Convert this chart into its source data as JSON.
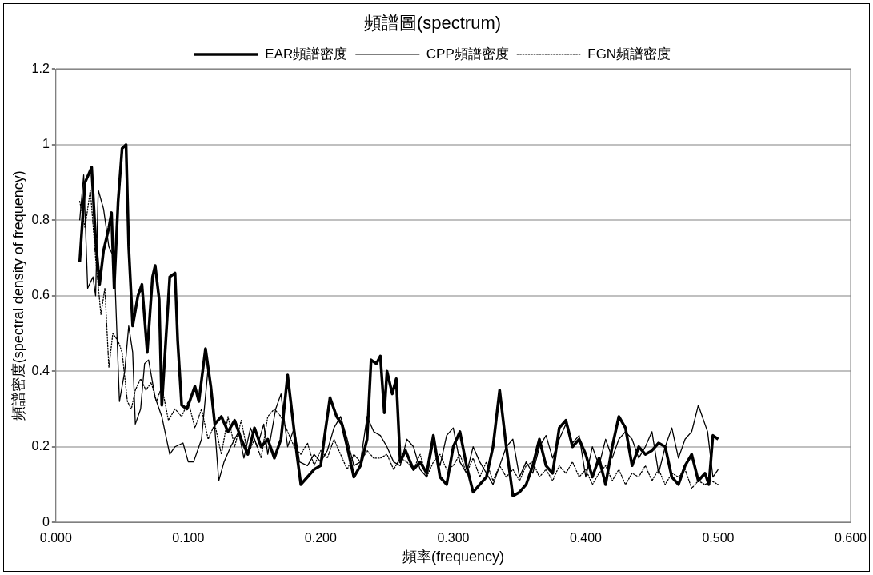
{
  "chart_data": {
    "type": "line",
    "title": "頻譜圖(spectrum)",
    "xlabel": "頻率(frequency)",
    "ylabel": "頻譜密度(spectral density of frequency)",
    "xlim": [
      0,
      0.6
    ],
    "xticks": [
      {
        "value": 0,
        "label": "0.000"
      },
      {
        "value": 0.1,
        "label": "0.100"
      },
      {
        "value": 0.2,
        "label": "0.200"
      },
      {
        "value": 0.3,
        "label": "0.300"
      },
      {
        "value": 0.4,
        "label": "0.400"
      },
      {
        "value": 0.5,
        "label": "0.500"
      },
      {
        "value": 0.6,
        "label": "0.600"
      }
    ],
    "ylim": [
      0,
      1.2
    ],
    "yticks": [
      0,
      0.2,
      0.4,
      0.6,
      0.8,
      1,
      1.2
    ],
    "grid": "y",
    "legend": "top",
    "marker": "none",
    "series": [
      {
        "name": "EAR頻譜密度",
        "color": "#000000",
        "line_style": "solid",
        "x": [
          0.018,
          0.022,
          0.027,
          0.03,
          0.033,
          0.036,
          0.04,
          0.042,
          0.044,
          0.047,
          0.05,
          0.053,
          0.055,
          0.058,
          0.062,
          0.065,
          0.069,
          0.073,
          0.075,
          0.078,
          0.08,
          0.083,
          0.086,
          0.09,
          0.092,
          0.095,
          0.099,
          0.105,
          0.108,
          0.113,
          0.117,
          0.12,
          0.125,
          0.13,
          0.135,
          0.14,
          0.145,
          0.15,
          0.155,
          0.16,
          0.165,
          0.17,
          0.175,
          0.178,
          0.182,
          0.185,
          0.19,
          0.195,
          0.2,
          0.203,
          0.207,
          0.212,
          0.216,
          0.22,
          0.225,
          0.23,
          0.235,
          0.238,
          0.242,
          0.245,
          0.248,
          0.25,
          0.254,
          0.257,
          0.26,
          0.264,
          0.27,
          0.275,
          0.28,
          0.285,
          0.29,
          0.295,
          0.3,
          0.305,
          0.31,
          0.315,
          0.32,
          0.325,
          0.33,
          0.335,
          0.34,
          0.345,
          0.35,
          0.355,
          0.36,
          0.365,
          0.37,
          0.375,
          0.38,
          0.385,
          0.39,
          0.395,
          0.4,
          0.405,
          0.41,
          0.415,
          0.42,
          0.425,
          0.43,
          0.435,
          0.44,
          0.445,
          0.45,
          0.455,
          0.46,
          0.465,
          0.47,
          0.475,
          0.48,
          0.485,
          0.49,
          0.493,
          0.496,
          0.5
        ],
        "values": [
          0.69,
          0.9,
          0.94,
          0.75,
          0.63,
          0.72,
          0.78,
          0.82,
          0.62,
          0.85,
          0.99,
          1.0,
          0.73,
          0.52,
          0.6,
          0.63,
          0.45,
          0.65,
          0.68,
          0.59,
          0.31,
          0.48,
          0.65,
          0.66,
          0.48,
          0.31,
          0.3,
          0.36,
          0.32,
          0.46,
          0.36,
          0.26,
          0.28,
          0.24,
          0.27,
          0.22,
          0.18,
          0.25,
          0.2,
          0.22,
          0.17,
          0.22,
          0.39,
          0.3,
          0.18,
          0.1,
          0.12,
          0.14,
          0.15,
          0.23,
          0.33,
          0.28,
          0.26,
          0.2,
          0.12,
          0.15,
          0.22,
          0.43,
          0.42,
          0.44,
          0.29,
          0.4,
          0.34,
          0.38,
          0.16,
          0.19,
          0.14,
          0.16,
          0.13,
          0.23,
          0.12,
          0.1,
          0.2,
          0.24,
          0.15,
          0.08,
          0.1,
          0.12,
          0.2,
          0.35,
          0.2,
          0.07,
          0.08,
          0.1,
          0.15,
          0.22,
          0.15,
          0.13,
          0.25,
          0.27,
          0.2,
          0.22,
          0.18,
          0.12,
          0.17,
          0.1,
          0.2,
          0.28,
          0.25,
          0.15,
          0.2,
          0.18,
          0.19,
          0.21,
          0.2,
          0.12,
          0.1,
          0.15,
          0.18,
          0.11,
          0.13,
          0.1,
          0.23,
          0.22
        ]
      },
      {
        "name": "CPP頻譜密度",
        "color": "#000000",
        "line_style": "solid",
        "x": [
          0.018,
          0.021,
          0.024,
          0.028,
          0.03,
          0.032,
          0.036,
          0.04,
          0.044,
          0.048,
          0.052,
          0.055,
          0.058,
          0.06,
          0.064,
          0.067,
          0.07,
          0.075,
          0.08,
          0.086,
          0.09,
          0.096,
          0.1,
          0.104,
          0.11,
          0.115,
          0.12,
          0.123,
          0.127,
          0.132,
          0.138,
          0.142,
          0.147,
          0.152,
          0.157,
          0.16,
          0.166,
          0.17,
          0.175,
          0.18,
          0.184,
          0.19,
          0.195,
          0.2,
          0.205,
          0.21,
          0.215,
          0.22,
          0.225,
          0.23,
          0.235,
          0.24,
          0.245,
          0.25,
          0.255,
          0.26,
          0.265,
          0.27,
          0.275,
          0.28,
          0.285,
          0.29,
          0.295,
          0.3,
          0.305,
          0.31,
          0.315,
          0.32,
          0.325,
          0.33,
          0.335,
          0.34,
          0.345,
          0.35,
          0.355,
          0.36,
          0.365,
          0.37,
          0.375,
          0.38,
          0.385,
          0.39,
          0.395,
          0.4,
          0.405,
          0.41,
          0.415,
          0.42,
          0.425,
          0.43,
          0.435,
          0.44,
          0.445,
          0.45,
          0.455,
          0.46,
          0.465,
          0.47,
          0.475,
          0.48,
          0.485,
          0.488,
          0.492,
          0.496,
          0.5
        ],
        "values": [
          0.8,
          0.92,
          0.62,
          0.65,
          0.6,
          0.88,
          0.83,
          0.73,
          0.7,
          0.32,
          0.4,
          0.52,
          0.45,
          0.26,
          0.3,
          0.42,
          0.43,
          0.33,
          0.28,
          0.18,
          0.2,
          0.21,
          0.16,
          0.16,
          0.22,
          0.41,
          0.25,
          0.11,
          0.16,
          0.2,
          0.24,
          0.17,
          0.25,
          0.2,
          0.26,
          0.18,
          0.3,
          0.34,
          0.2,
          0.25,
          0.16,
          0.15,
          0.18,
          0.16,
          0.19,
          0.25,
          0.28,
          0.22,
          0.15,
          0.16,
          0.28,
          0.24,
          0.23,
          0.2,
          0.16,
          0.15,
          0.22,
          0.2,
          0.14,
          0.12,
          0.21,
          0.15,
          0.23,
          0.25,
          0.16,
          0.13,
          0.2,
          0.16,
          0.13,
          0.1,
          0.15,
          0.2,
          0.22,
          0.12,
          0.16,
          0.13,
          0.2,
          0.23,
          0.17,
          0.22,
          0.26,
          0.21,
          0.23,
          0.12,
          0.2,
          0.15,
          0.22,
          0.17,
          0.22,
          0.24,
          0.22,
          0.17,
          0.2,
          0.24,
          0.13,
          0.2,
          0.25,
          0.17,
          0.22,
          0.24,
          0.31,
          0.28,
          0.24,
          0.12,
          0.14
        ]
      },
      {
        "name": "FGN頻譜密度",
        "color": "#000000",
        "line_style": "dotted",
        "x": [
          0.018,
          0.022,
          0.026,
          0.03,
          0.034,
          0.037,
          0.04,
          0.043,
          0.047,
          0.05,
          0.054,
          0.057,
          0.06,
          0.064,
          0.068,
          0.072,
          0.076,
          0.08,
          0.085,
          0.09,
          0.095,
          0.1,
          0.105,
          0.11,
          0.115,
          0.12,
          0.125,
          0.13,
          0.135,
          0.14,
          0.145,
          0.15,
          0.155,
          0.16,
          0.165,
          0.17,
          0.175,
          0.18,
          0.185,
          0.19,
          0.195,
          0.2,
          0.205,
          0.21,
          0.215,
          0.22,
          0.225,
          0.23,
          0.235,
          0.24,
          0.245,
          0.25,
          0.255,
          0.26,
          0.265,
          0.27,
          0.275,
          0.28,
          0.285,
          0.29,
          0.295,
          0.3,
          0.305,
          0.31,
          0.315,
          0.32,
          0.325,
          0.33,
          0.335,
          0.34,
          0.345,
          0.35,
          0.355,
          0.36,
          0.365,
          0.37,
          0.375,
          0.38,
          0.385,
          0.39,
          0.395,
          0.4,
          0.405,
          0.41,
          0.415,
          0.42,
          0.425,
          0.43,
          0.435,
          0.44,
          0.445,
          0.45,
          0.455,
          0.46,
          0.465,
          0.47,
          0.475,
          0.48,
          0.485,
          0.49,
          0.495,
          0.5
        ],
        "values": [
          0.85,
          0.78,
          0.88,
          0.7,
          0.55,
          0.62,
          0.41,
          0.5,
          0.48,
          0.45,
          0.32,
          0.3,
          0.35,
          0.38,
          0.35,
          0.37,
          0.32,
          0.36,
          0.27,
          0.3,
          0.28,
          0.32,
          0.25,
          0.3,
          0.22,
          0.26,
          0.18,
          0.28,
          0.2,
          0.27,
          0.18,
          0.22,
          0.17,
          0.28,
          0.3,
          0.28,
          0.24,
          0.2,
          0.18,
          0.21,
          0.15,
          0.19,
          0.17,
          0.22,
          0.18,
          0.14,
          0.18,
          0.16,
          0.19,
          0.17,
          0.17,
          0.18,
          0.14,
          0.17,
          0.16,
          0.14,
          0.18,
          0.12,
          0.16,
          0.18,
          0.14,
          0.15,
          0.18,
          0.13,
          0.17,
          0.12,
          0.16,
          0.11,
          0.15,
          0.12,
          0.14,
          0.11,
          0.15,
          0.16,
          0.12,
          0.14,
          0.11,
          0.15,
          0.13,
          0.16,
          0.12,
          0.14,
          0.1,
          0.13,
          0.15,
          0.11,
          0.14,
          0.1,
          0.13,
          0.12,
          0.15,
          0.11,
          0.14,
          0.1,
          0.13,
          0.12,
          0.14,
          0.09,
          0.11,
          0.1,
          0.11,
          0.1
        ]
      }
    ]
  }
}
